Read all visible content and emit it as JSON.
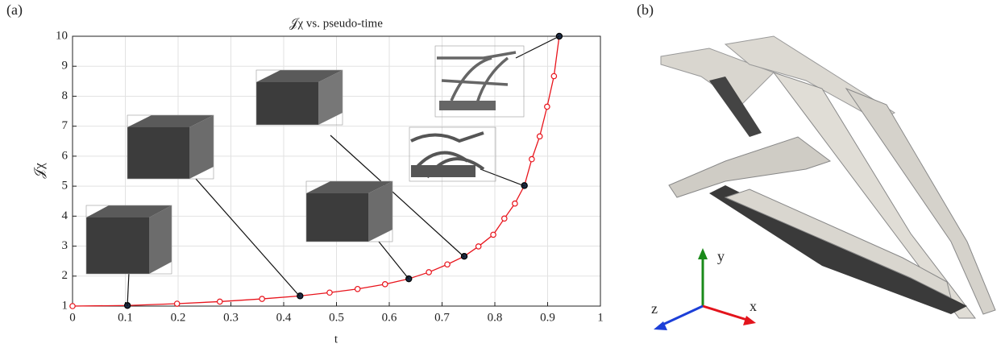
{
  "panel_labels": [
    "(a)",
    "(b)"
  ],
  "axes_triad": {
    "x": "x",
    "y": "y",
    "z": "z"
  },
  "chart_data": {
    "type": "line",
    "title": "𝒥χ vs. pseudo-time",
    "x_label": "t",
    "y_label": "𝒥χ",
    "x": [
      0,
      0.104,
      0.198,
      0.279,
      0.359,
      0.431,
      0.487,
      0.54,
      0.592,
      0.637,
      0.675,
      0.71,
      0.742,
      0.769,
      0.797,
      0.818,
      0.838,
      0.856,
      0.87,
      0.885,
      0.899,
      0.912,
      0.922
    ],
    "values": [
      1.0,
      1.02,
      1.08,
      1.15,
      1.24,
      1.34,
      1.45,
      1.57,
      1.73,
      1.91,
      2.13,
      2.39,
      2.66,
      2.99,
      3.38,
      3.92,
      4.42,
      5.02,
      5.9,
      6.66,
      7.65,
      8.67,
      10.0
    ],
    "color": "#e8141c",
    "highlighted": [
      1,
      5,
      9,
      12,
      17,
      22
    ],
    "highlight_color": "#1c2b44",
    "xlim": [
      0,
      1
    ],
    "xticks": [
      0,
      0.1,
      0.2,
      0.3,
      0.4,
      0.5,
      0.6,
      0.7,
      0.8,
      0.9,
      1
    ],
    "ylim": [
      1,
      10
    ],
    "yticks": [
      1,
      2,
      3,
      4,
      5,
      6,
      7,
      8,
      9,
      10
    ],
    "grid": true
  }
}
